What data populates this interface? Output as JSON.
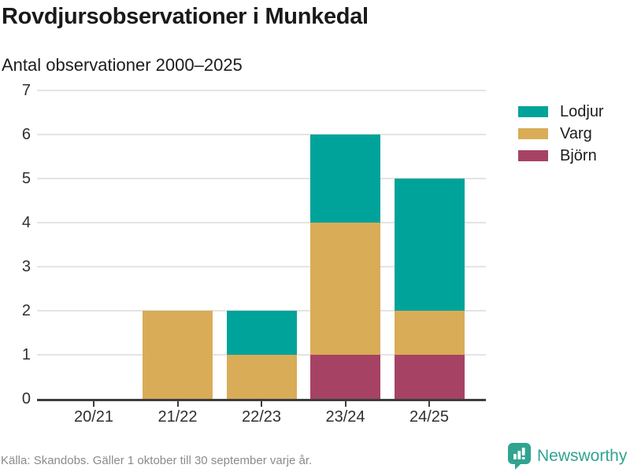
{
  "header": {
    "title": "Rovdjursobservationer i Munkedal",
    "subtitle": "Antal observationer 2000–2025"
  },
  "chart_data": {
    "type": "bar",
    "stacked": true,
    "title": "Rovdjursobservationer i Munkedal",
    "subtitle": "Antal observationer 2000–2025",
    "categories": [
      "20/21",
      "21/22",
      "22/23",
      "23/24",
      "24/25"
    ],
    "series": [
      {
        "name": "Lodjur",
        "color": "#00a39a",
        "values": [
          0,
          0,
          1,
          2,
          3
        ]
      },
      {
        "name": "Varg",
        "color": "#d9ac57",
        "values": [
          0,
          2,
          1,
          3,
          1
        ]
      },
      {
        "name": "Björn",
        "color": "#a64364",
        "values": [
          0,
          0,
          0,
          1,
          1
        ]
      }
    ],
    "stack_order_bottom_to_top": [
      "Björn",
      "Varg",
      "Lodjur"
    ],
    "totals": [
      0,
      2,
      2,
      6,
      5
    ],
    "xlabel": "",
    "ylabel": "",
    "ylim": [
      0,
      7
    ],
    "yticks": [
      0,
      1,
      2,
      3,
      4,
      5,
      6,
      7
    ],
    "grid": "horizontal",
    "legend_position": "top-right",
    "legend_order": [
      "Lodjur",
      "Varg",
      "Björn"
    ]
  },
  "footer": {
    "source": "Källa: Skandobs. Gäller 1 oktober till 30 september varje år.",
    "brand": "Newsworthy"
  },
  "icons": {
    "brand_icon": "speech-bubble-bar-chart-exclamation-icon"
  },
  "colors": {
    "accent_teal": "#00a39a",
    "accent_gold": "#d9ac57",
    "accent_berry": "#a64364",
    "brand": "#31a391",
    "axis": "#3d3d3d",
    "grid": "#e4e4e4",
    "text_dark": "#1a1a1a",
    "text_muted": "#8b8b8b"
  }
}
